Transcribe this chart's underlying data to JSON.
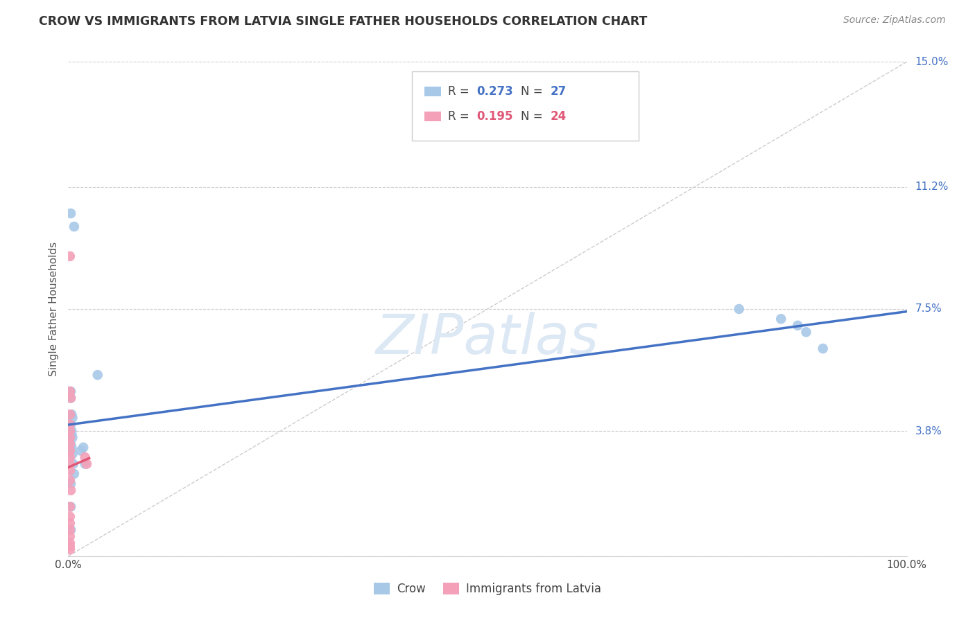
{
  "title": "CROW VS IMMIGRANTS FROM LATVIA SINGLE FATHER HOUSEHOLDS CORRELATION CHART",
  "source": "Source: ZipAtlas.com",
  "ylabel": "Single Father Households",
  "xlim": [
    0,
    1.0
  ],
  "ylim": [
    0,
    0.15
  ],
  "xtick_positions": [
    0.0,
    1.0
  ],
  "xtick_labels": [
    "0.0%",
    "100.0%"
  ],
  "ytick_positions": [
    0.0,
    0.038,
    0.075,
    0.112,
    0.15
  ],
  "ytick_labels": [
    "",
    "3.8%",
    "7.5%",
    "11.2%",
    "15.0%"
  ],
  "crow_R": 0.273,
  "crow_N": 27,
  "latvia_R": 0.195,
  "latvia_N": 24,
  "crow_color": "#a8c8e8",
  "latvia_color": "#f4a0b8",
  "crow_line_color": "#4472c4",
  "latvia_line_color": "#e05878",
  "crow_scatter_x": [
    0.003,
    0.007,
    0.003,
    0.003,
    0.004,
    0.005,
    0.003,
    0.004,
    0.004,
    0.005,
    0.003,
    0.004,
    0.005,
    0.006,
    0.007,
    0.015,
    0.018,
    0.02,
    0.035,
    0.8,
    0.85,
    0.87,
    0.88,
    0.9,
    0.003,
    0.003,
    0.003
  ],
  "crow_scatter_y": [
    0.104,
    0.1,
    0.05,
    0.048,
    0.043,
    0.042,
    0.04,
    0.038,
    0.037,
    0.036,
    0.034,
    0.033,
    0.031,
    0.028,
    0.025,
    0.032,
    0.033,
    0.028,
    0.055,
    0.075,
    0.072,
    0.07,
    0.068,
    0.063,
    0.022,
    0.015,
    0.008
  ],
  "latvia_scatter_x": [
    0.002,
    0.002,
    0.003,
    0.002,
    0.002,
    0.002,
    0.002,
    0.002,
    0.002,
    0.002,
    0.002,
    0.002,
    0.002,
    0.003,
    0.02,
    0.022,
    0.002,
    0.002,
    0.002,
    0.002,
    0.002,
    0.002,
    0.002,
    0.002
  ],
  "latvia_scatter_y": [
    0.091,
    0.05,
    0.048,
    0.043,
    0.04,
    0.038,
    0.036,
    0.034,
    0.032,
    0.03,
    0.028,
    0.026,
    0.023,
    0.02,
    0.03,
    0.028,
    0.015,
    0.012,
    0.01,
    0.008,
    0.006,
    0.004,
    0.003,
    0.002
  ],
  "background_color": "#ffffff",
  "grid_color": "#cccccc",
  "watermark_color": "#dde8f5"
}
